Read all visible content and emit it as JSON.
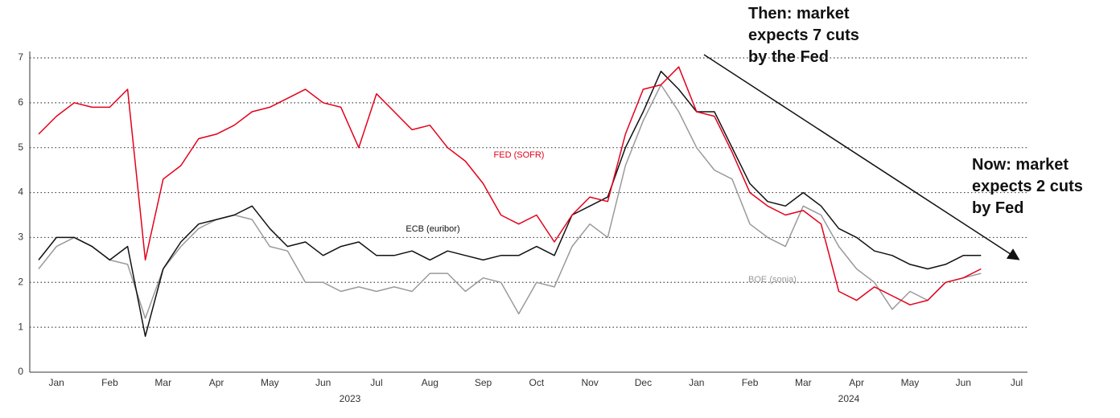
{
  "chart_data": {
    "type": "line",
    "categories": [
      null,
      "Jan",
      null,
      null,
      "Feb",
      null,
      null,
      "Mar",
      null,
      null,
      "Apr",
      null,
      null,
      "May",
      null,
      null,
      "Jun",
      null,
      null,
      "Jul",
      null,
      null,
      "Aug",
      null,
      null,
      "Sep",
      null,
      null,
      "Oct",
      null,
      null,
      "Nov",
      null,
      null,
      "Dec",
      null,
      null,
      "Jan",
      null,
      null,
      "Feb",
      null,
      null,
      "Mar",
      null,
      null,
      "Apr",
      null,
      null,
      "May",
      null,
      null,
      "Jun",
      null,
      null,
      "Jul",
      null
    ],
    "years": [
      "2023",
      "2024"
    ],
    "series": [
      {
        "name": "FED (SOFR)",
        "color": "#e3001b",
        "values": [
          5.3,
          5.7,
          6.0,
          5.9,
          5.9,
          6.3,
          2.5,
          4.3,
          4.6,
          5.2,
          5.3,
          5.5,
          5.8,
          5.9,
          6.1,
          6.3,
          6.0,
          5.9,
          5.0,
          6.2,
          5.8,
          5.4,
          5.5,
          5.0,
          4.7,
          4.2,
          3.5,
          3.3,
          3.5,
          2.9,
          3.5,
          3.9,
          3.8,
          5.3,
          6.3,
          6.4,
          6.8,
          5.8,
          5.7,
          4.9,
          4.0,
          3.7,
          3.5,
          3.6,
          3.3,
          1.8,
          1.6,
          1.9,
          1.7,
          1.5,
          1.6,
          2.0,
          2.1,
          2.3,
          null,
          null,
          null
        ]
      },
      {
        "name": "ECB (euribor)",
        "color": "#111111",
        "values": [
          2.5,
          3.0,
          3.0,
          2.8,
          2.5,
          2.8,
          0.8,
          2.3,
          2.9,
          3.3,
          3.4,
          3.5,
          3.7,
          3.2,
          2.8,
          2.9,
          2.6,
          2.8,
          2.9,
          2.6,
          2.6,
          2.7,
          2.5,
          2.7,
          2.6,
          2.5,
          2.6,
          2.6,
          2.8,
          2.6,
          3.5,
          3.7,
          3.9,
          5.0,
          5.8,
          6.7,
          6.3,
          5.8,
          5.8,
          5.0,
          4.2,
          3.8,
          3.7,
          4.0,
          3.7,
          3.2,
          3.0,
          2.7,
          2.6,
          2.4,
          2.3,
          2.4,
          2.6,
          2.6,
          null,
          null,
          null
        ]
      },
      {
        "name": "BOE (sonia)",
        "color": "#9a9a9a",
        "values": [
          2.3,
          2.8,
          3.0,
          2.8,
          2.5,
          2.4,
          1.2,
          2.3,
          2.8,
          3.2,
          3.4,
          3.5,
          3.4,
          2.8,
          2.7,
          2.0,
          2.0,
          1.8,
          1.9,
          1.8,
          1.9,
          1.8,
          2.2,
          2.2,
          1.8,
          2.1,
          2.0,
          1.3,
          2.0,
          1.9,
          2.8,
          3.3,
          3.0,
          4.6,
          5.6,
          6.4,
          5.8,
          5.0,
          4.5,
          4.3,
          3.3,
          3.0,
          2.8,
          3.7,
          3.5,
          2.8,
          2.3,
          2.0,
          1.4,
          1.8,
          1.6,
          2.0,
          2.1,
          2.2,
          null,
          null,
          null
        ]
      }
    ],
    "annotations": [
      "Then: market expects 7 cuts by the Fed",
      "Now:  market expects 2 cuts by Fed"
    ],
    "ylim": [
      0,
      7.1
    ],
    "yticks": [
      0,
      1,
      2,
      3,
      4,
      5,
      6,
      7
    ],
    "grid": true
  }
}
